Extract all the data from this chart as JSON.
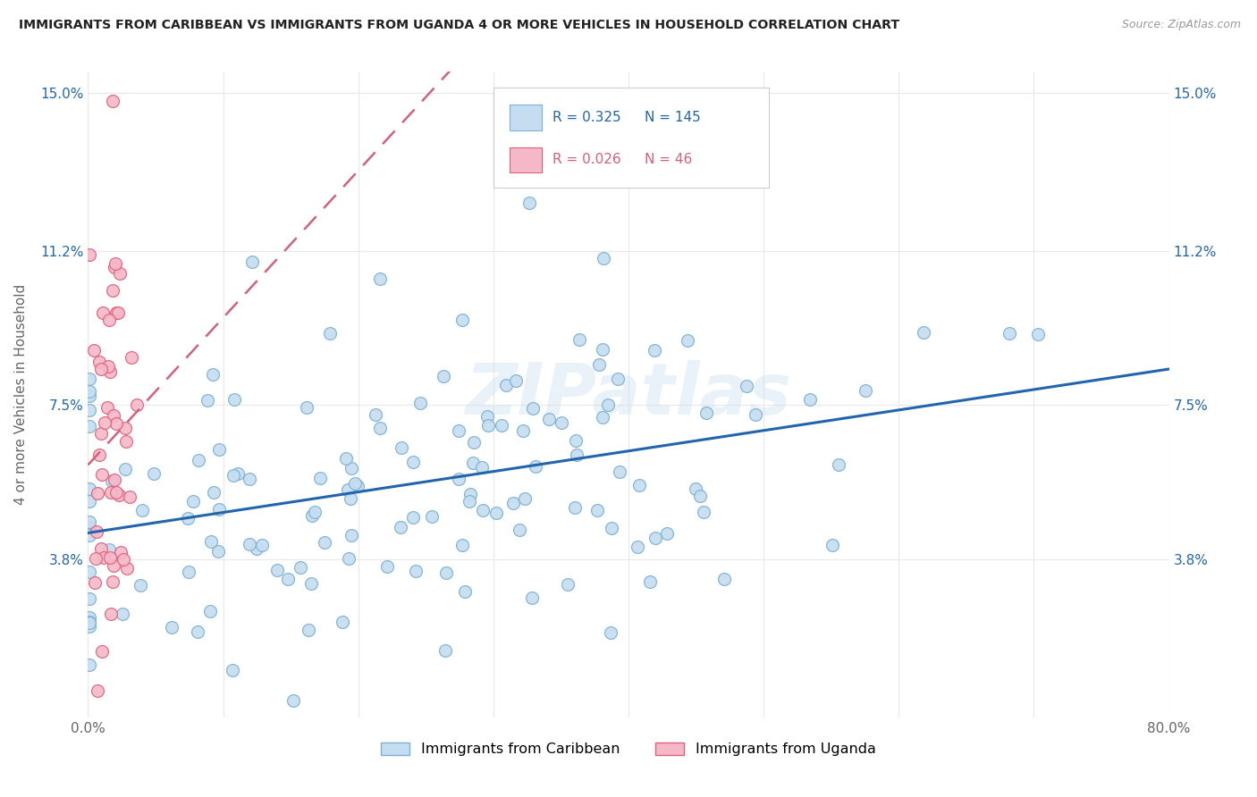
{
  "title": "IMMIGRANTS FROM CARIBBEAN VS IMMIGRANTS FROM UGANDA 4 OR MORE VEHICLES IN HOUSEHOLD CORRELATION CHART",
  "source": "Source: ZipAtlas.com",
  "ylabel": "4 or more Vehicles in Household",
  "xmin": 0.0,
  "xmax": 0.8,
  "ymin": 0.0,
  "ymax": 0.155,
  "yticks": [
    0.038,
    0.075,
    0.112,
    0.15
  ],
  "ytick_labels": [
    "3.8%",
    "7.5%",
    "11.2%",
    "15.0%"
  ],
  "xticks": [
    0.0,
    0.1,
    0.2,
    0.3,
    0.4,
    0.5,
    0.6,
    0.7,
    0.8
  ],
  "xtick_labels": [
    "0.0%",
    "",
    "",
    "",
    "",
    "",
    "",
    "",
    "80.0%"
  ],
  "caribbean_R": 0.325,
  "caribbean_N": 145,
  "uganda_R": 0.026,
  "uganda_N": 46,
  "caribbean_color": "#c5ddf0",
  "caribbean_edge_color": "#7ab0d4",
  "uganda_color": "#f5b8c8",
  "uganda_edge_color": "#e0607a",
  "trend_caribbean_color": "#2166ac",
  "trend_uganda_color": "#d4607a",
  "legend_label_caribbean": "Immigrants from Caribbean",
  "legend_label_uganda": "Immigrants from Uganda",
  "watermark": "ZIPatlas",
  "background_color": "#ffffff",
  "grid_color": "#e8e8e8",
  "tick_color": "#2166ac",
  "label_color": "#666666",
  "seed": 12
}
